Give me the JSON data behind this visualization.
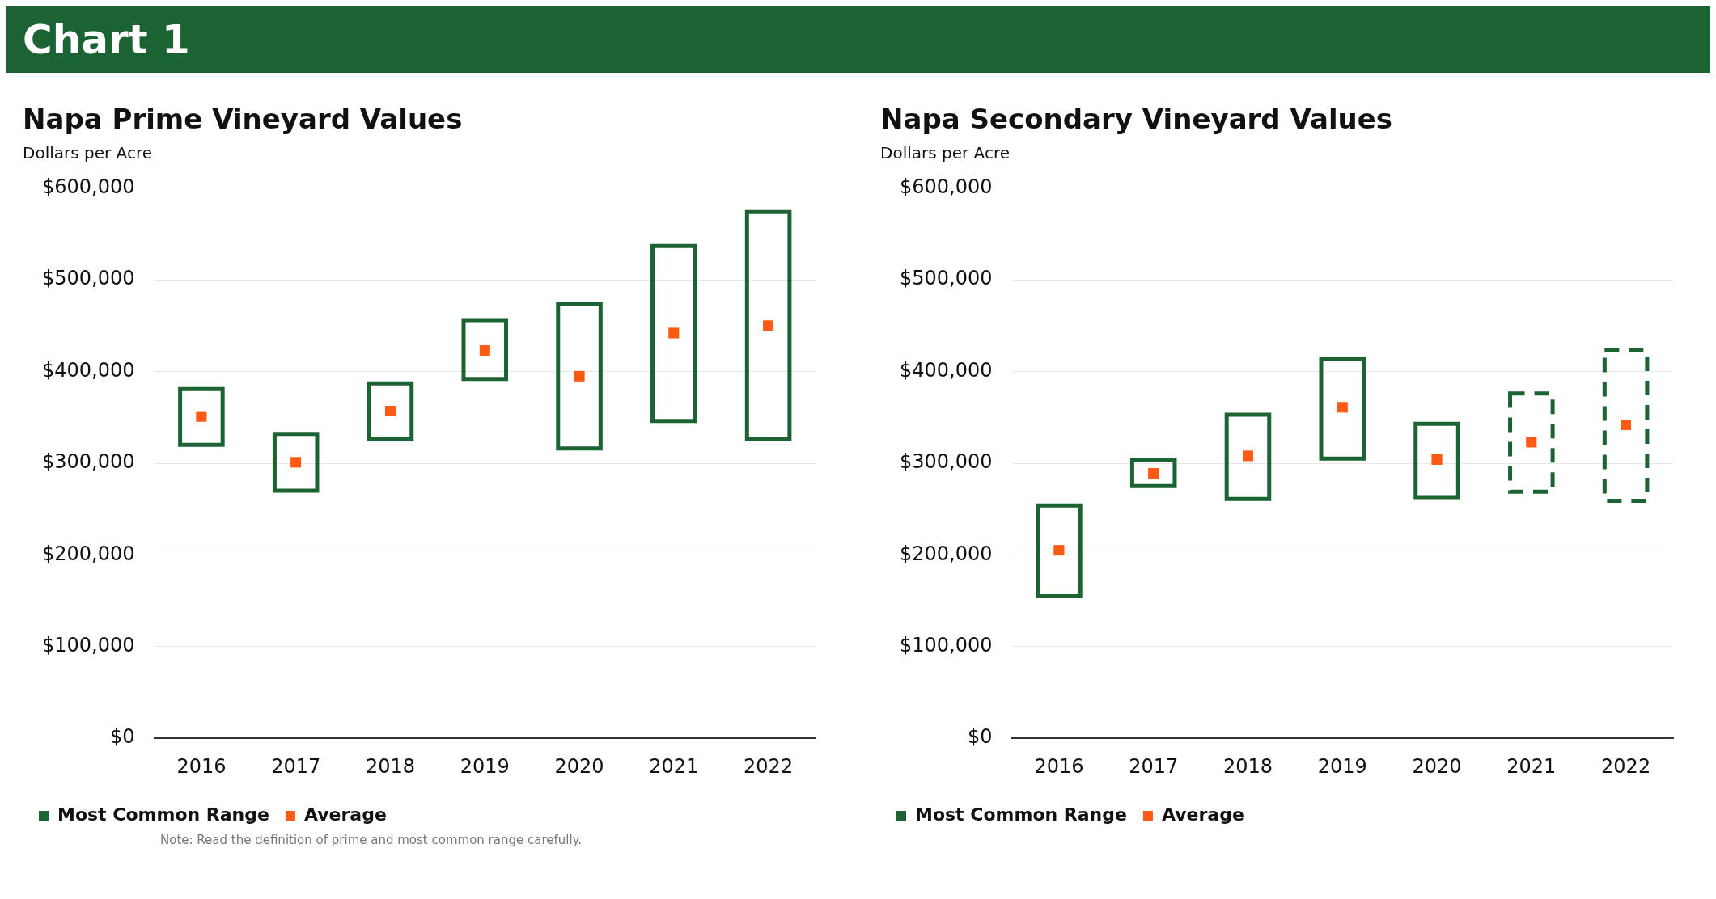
{
  "chart_data": [
    {
      "type": "bar",
      "title": "Napa Prime Vineyard Values",
      "subtitle": "Dollars per Acre",
      "categories": [
        "2016",
        "2017",
        "2018",
        "2019",
        "2020",
        "2021",
        "2022"
      ],
      "series": [
        {
          "name": "Most Common Range",
          "color": "#1b6332",
          "base": [
            320000,
            270000,
            327000,
            392000,
            316000,
            346000,
            326000
          ],
          "values": [
            61000,
            62000,
            60000,
            64000,
            158000,
            191000,
            248000
          ]
        },
        {
          "name": "Average",
          "type": "scatter",
          "color": "#ff5a14",
          "values": [
            351000,
            301000,
            357000,
            423000,
            395000,
            442000,
            450000
          ]
        }
      ],
      "ylim": [
        0,
        600000
      ],
      "yticks": [
        {
          "value": 0,
          "label": "$0"
        },
        {
          "value": 100000,
          "label": "$100,000"
        },
        {
          "value": 200000,
          "label": "$200,000"
        },
        {
          "value": 300000,
          "label": "$300,000"
        },
        {
          "value": 400000,
          "label": "$400,000"
        },
        {
          "value": 500000,
          "label": "$500,000"
        },
        {
          "value": 600000,
          "label": "$600,000"
        }
      ],
      "grid": "y",
      "legend": "bottom",
      "marker": "square",
      "annotations": [
        "Chart 1",
        "Note: Read the definition of prime and most common range carefully."
      ]
    },
    {
      "type": "bar",
      "title": "Napa Secondary Vineyard Values",
      "subtitle": "Dollars per Acre",
      "categories": [
        "2016",
        "2017",
        "2018",
        "2019",
        "2020",
        "2021",
        "2022"
      ],
      "series": [
        {
          "name": "Most Common Range",
          "color": "#1b6332",
          "base": [
            155000,
            275000,
            261000,
            305000,
            263000,
            null,
            null
          ],
          "values": [
            99000,
            28000,
            92000,
            109000,
            80000,
            null,
            null
          ]
        },
        {
          "color": "#1b6332",
          "line_style": "dashed",
          "base": [
            null,
            null,
            null,
            null,
            null,
            269000,
            259000
          ],
          "values": [
            null,
            null,
            null,
            null,
            null,
            107000,
            164000
          ]
        },
        {
          "name": "Average",
          "type": "scatter",
          "color": "#ff5a14",
          "values": [
            205000,
            289000,
            308000,
            361000,
            304000,
            323000,
            342000
          ]
        }
      ],
      "ylim": [
        0,
        600000
      ],
      "yticks": [
        {
          "value": 0,
          "label": "$0"
        },
        {
          "value": 100000,
          "label": "$100,000"
        },
        {
          "value": 200000,
          "label": "$200,000"
        },
        {
          "value": 300000,
          "label": "$300,000"
        },
        {
          "value": 400000,
          "label": "$400,000"
        },
        {
          "value": 500000,
          "label": "$500,000"
        },
        {
          "value": 600000,
          "label": "$600,000"
        }
      ],
      "grid": "y",
      "legend": "bottom",
      "marker": "square"
    }
  ]
}
